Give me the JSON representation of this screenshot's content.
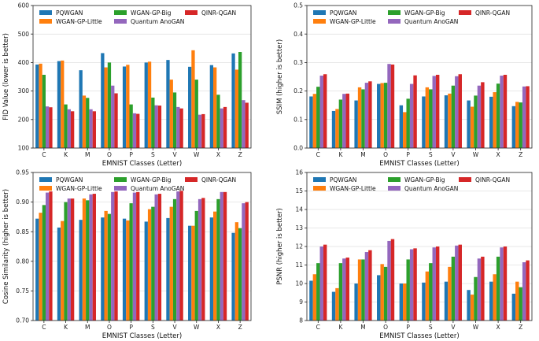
{
  "colors": {
    "PQWGAN": "#1f77b4",
    "WGAN-GP-Little": "#ff7f0e",
    "WGAN-GP-Big": "#2ca02c",
    "Quantum AnoGAN": "#9467bd",
    "QINR-QGAN": "#d62728"
  },
  "chart_data": [
    {
      "type": "bar",
      "title": "",
      "xlabel": "EMNIST Classes (Letter)",
      "ylabel": "FID Value (lower is better)",
      "ylim": [
        100,
        600
      ],
      "yticks": [
        100,
        200,
        300,
        400,
        500,
        600
      ],
      "grid": true,
      "legend": "top, 3 columns",
      "categories": [
        "C",
        "K",
        "M",
        "O",
        "P",
        "S",
        "V",
        "W",
        "X",
        "Z"
      ],
      "series": [
        {
          "name": "PQWGAN",
          "values": [
            393,
            405,
            373,
            433,
            386,
            400,
            409,
            385,
            391,
            432
          ]
        },
        {
          "name": "WGAN-GP-Little",
          "values": [
            396,
            407,
            284,
            383,
            392,
            403,
            340,
            443,
            383,
            375
          ]
        },
        {
          "name": "WGAN-GP-Big",
          "values": [
            357,
            253,
            276,
            400,
            253,
            277,
            295,
            340,
            287,
            437
          ]
        },
        {
          "name": "Quantum AnoGAN",
          "values": [
            246,
            236,
            236,
            319,
            222,
            250,
            244,
            217,
            239,
            268
          ]
        },
        {
          "name": "QINR-QGAN",
          "values": [
            243,
            229,
            229,
            292,
            220,
            249,
            239,
            219,
            244,
            259
          ]
        }
      ]
    },
    {
      "type": "bar",
      "title": "",
      "xlabel": "EMNIST Classes (Letter)",
      "ylabel": "SSIM (higher is better)",
      "ylim": [
        0.0,
        0.5
      ],
      "yticks": [
        0.0,
        0.1,
        0.2,
        0.3,
        0.4,
        0.5
      ],
      "grid": true,
      "legend": "top, 3 columns",
      "categories": [
        "C",
        "K",
        "M",
        "O",
        "P",
        "S",
        "V",
        "W",
        "X",
        "Z"
      ],
      "series": [
        {
          "name": "PQWGAN",
          "values": [
            0.181,
            0.13,
            0.167,
            0.225,
            0.15,
            0.181,
            0.185,
            0.167,
            0.18,
            0.147
          ]
        },
        {
          "name": "WGAN-GP-Little",
          "values": [
            0.19,
            0.137,
            0.213,
            0.228,
            0.126,
            0.213,
            0.191,
            0.145,
            0.196,
            0.162
          ]
        },
        {
          "name": "WGAN-GP-Big",
          "values": [
            0.215,
            0.17,
            0.206,
            0.229,
            0.173,
            0.206,
            0.219,
            0.184,
            0.226,
            0.16
          ]
        },
        {
          "name": "Quantum AnoGAN",
          "values": [
            0.254,
            0.19,
            0.229,
            0.295,
            0.225,
            0.253,
            0.252,
            0.219,
            0.254,
            0.216
          ]
        },
        {
          "name": "QINR-QGAN",
          "values": [
            0.259,
            0.191,
            0.234,
            0.293,
            0.255,
            0.257,
            0.259,
            0.231,
            0.257,
            0.217
          ]
        }
      ]
    },
    {
      "type": "bar",
      "title": "",
      "xlabel": "EMNIST Classes (Letter)",
      "ylabel": "Cosine Similarity (higher is better)",
      "ylim": [
        0.7,
        0.95
      ],
      "yticks": [
        0.7,
        0.75,
        0.8,
        0.85,
        0.9,
        0.95
      ],
      "grid": true,
      "legend": "top, 3 columns",
      "categories": [
        "C",
        "K",
        "M",
        "O",
        "P",
        "S",
        "V",
        "W",
        "X",
        "Z"
      ],
      "series": [
        {
          "name": "PQWGAN",
          "values": [
            0.872,
            0.857,
            0.87,
            0.874,
            0.872,
            0.867,
            0.873,
            0.86,
            0.874,
            0.848
          ]
        },
        {
          "name": "WGAN-GP-Little",
          "values": [
            0.882,
            0.868,
            0.906,
            0.885,
            0.869,
            0.888,
            0.892,
            0.86,
            0.884,
            0.866
          ]
        },
        {
          "name": "WGAN-GP-Big",
          "values": [
            0.895,
            0.9,
            0.903,
            0.88,
            0.898,
            0.892,
            0.905,
            0.885,
            0.905,
            0.856
          ]
        },
        {
          "name": "Quantum AnoGAN",
          "values": [
            0.916,
            0.906,
            0.913,
            0.917,
            0.916,
            0.913,
            0.918,
            0.905,
            0.917,
            0.898
          ]
        },
        {
          "name": "QINR-QGAN",
          "values": [
            0.918,
            0.906,
            0.914,
            0.918,
            0.917,
            0.914,
            0.919,
            0.907,
            0.917,
            0.9
          ]
        }
      ]
    },
    {
      "type": "bar",
      "title": "",
      "xlabel": "EMNIST Classes (Letter)",
      "ylabel": "PSNR (higher is better)",
      "ylim": [
        8,
        16
      ],
      "yticks": [
        8,
        9,
        10,
        11,
        12,
        13,
        14,
        15,
        16
      ],
      "grid": true,
      "legend": "top, 3 columns",
      "categories": [
        "C",
        "K",
        "M",
        "O",
        "P",
        "S",
        "V",
        "W",
        "X",
        "Z"
      ],
      "series": [
        {
          "name": "PQWGAN",
          "values": [
            10.15,
            9.55,
            10.0,
            10.45,
            10.0,
            10.05,
            10.1,
            9.65,
            10.1,
            9.45
          ]
        },
        {
          "name": "WGAN-GP-Little",
          "values": [
            10.5,
            9.75,
            11.3,
            11.05,
            10.0,
            10.65,
            10.9,
            9.4,
            10.5,
            10.1
          ]
        },
        {
          "name": "WGAN-GP-Big",
          "values": [
            11.1,
            11.1,
            11.3,
            10.9,
            11.3,
            11.1,
            11.45,
            10.35,
            11.45,
            9.8
          ]
        },
        {
          "name": "Quantum AnoGAN",
          "values": [
            12.0,
            11.35,
            11.7,
            12.3,
            11.85,
            11.95,
            12.05,
            11.35,
            11.95,
            11.15
          ]
        },
        {
          "name": "QINR-QGAN",
          "values": [
            12.1,
            11.4,
            11.8,
            12.4,
            11.9,
            12.0,
            12.1,
            11.45,
            12.0,
            11.25
          ]
        }
      ]
    }
  ]
}
